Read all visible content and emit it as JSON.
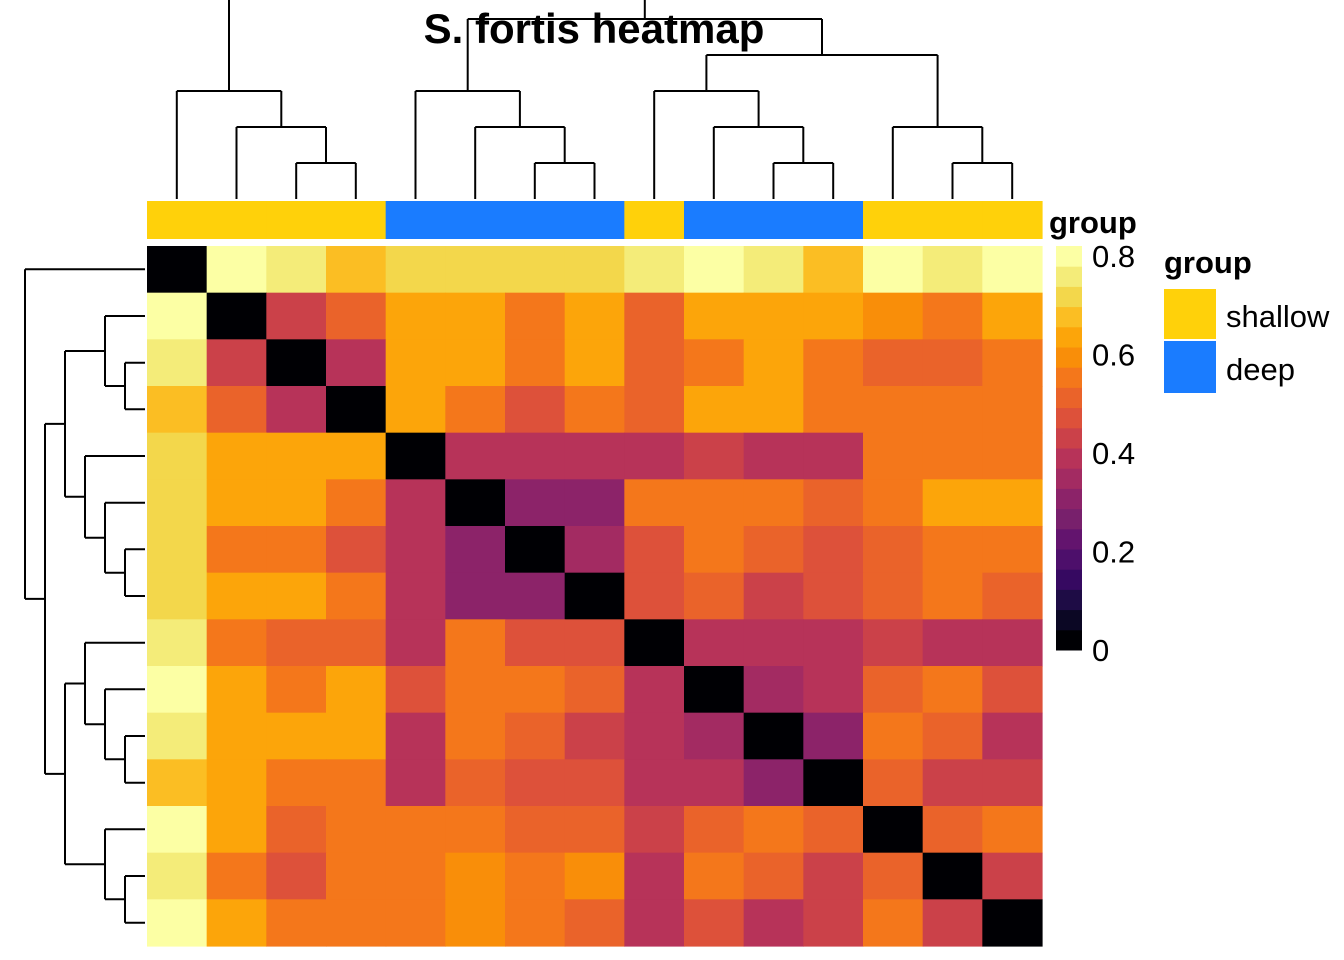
{
  "chart_data": {
    "type": "heatmap",
    "title": "S. fortis heatmap",
    "matrix": [
      [
        0.0,
        0.8,
        0.74,
        0.66,
        0.71,
        0.71,
        0.71,
        0.71,
        0.74,
        0.8,
        0.74,
        0.66,
        0.8,
        0.74,
        0.8
      ],
      [
        0.8,
        0.0,
        0.45,
        0.52,
        0.62,
        0.65,
        0.57,
        0.65,
        0.53,
        0.65,
        0.65,
        0.65,
        0.6,
        0.56,
        0.65
      ],
      [
        0.74,
        0.45,
        0.0,
        0.4,
        0.62,
        0.62,
        0.57,
        0.62,
        0.52,
        0.57,
        0.62,
        0.57,
        0.5,
        0.5,
        0.57
      ],
      [
        0.66,
        0.52,
        0.4,
        0.0,
        0.62,
        0.54,
        0.46,
        0.54,
        0.5,
        0.62,
        0.62,
        0.54,
        0.54,
        0.54,
        0.57
      ],
      [
        0.71,
        0.62,
        0.62,
        0.62,
        0.0,
        0.4,
        0.4,
        0.37,
        0.4,
        0.45,
        0.38,
        0.38,
        0.55,
        0.55,
        0.55
      ],
      [
        0.71,
        0.65,
        0.62,
        0.54,
        0.4,
        0.0,
        0.32,
        0.32,
        0.55,
        0.55,
        0.55,
        0.5,
        0.55,
        0.62,
        0.62
      ],
      [
        0.71,
        0.57,
        0.57,
        0.46,
        0.4,
        0.32,
        0.0,
        0.36,
        0.46,
        0.55,
        0.5,
        0.46,
        0.5,
        0.55,
        0.57
      ],
      [
        0.71,
        0.65,
        0.62,
        0.54,
        0.37,
        0.32,
        0.32,
        0.0,
        0.46,
        0.5,
        0.42,
        0.46,
        0.5,
        0.57,
        0.5
      ],
      [
        0.74,
        0.55,
        0.5,
        0.5,
        0.4,
        0.55,
        0.46,
        0.46,
        0.0,
        0.4,
        0.4,
        0.4,
        0.42,
        0.4,
        0.4
      ],
      [
        0.8,
        0.65,
        0.57,
        0.62,
        0.46,
        0.55,
        0.55,
        0.5,
        0.4,
        0.0,
        0.34,
        0.38,
        0.52,
        0.55,
        0.46
      ],
      [
        0.74,
        0.65,
        0.62,
        0.62,
        0.38,
        0.55,
        0.5,
        0.42,
        0.4,
        0.34,
        0.0,
        0.29,
        0.55,
        0.5,
        0.4
      ],
      [
        0.66,
        0.65,
        0.57,
        0.54,
        0.38,
        0.5,
        0.46,
        0.46,
        0.4,
        0.4,
        0.29,
        0.0,
        0.52,
        0.44,
        0.44
      ],
      [
        0.8,
        0.62,
        0.5,
        0.55,
        0.55,
        0.55,
        0.5,
        0.5,
        0.42,
        0.5,
        0.55,
        0.5,
        0.0,
        0.52,
        0.55
      ],
      [
        0.74,
        0.57,
        0.48,
        0.55,
        0.55,
        0.6,
        0.55,
        0.6,
        0.4,
        0.55,
        0.5,
        0.44,
        0.52,
        0.0,
        0.44
      ],
      [
        0.8,
        0.65,
        0.57,
        0.57,
        0.55,
        0.6,
        0.57,
        0.52,
        0.4,
        0.46,
        0.4,
        0.44,
        0.55,
        0.44,
        0.0
      ]
    ],
    "column_groups": [
      "shallow",
      "shallow",
      "shallow",
      "shallow",
      "deep",
      "deep",
      "deep",
      "deep",
      "shallow",
      "deep",
      "deep",
      "deep",
      "shallow",
      "shallow",
      "shallow"
    ],
    "annotation_label": "group",
    "colorbar": {
      "min": 0,
      "max": 0.82,
      "ticks": [
        {
          "value": 0,
          "label": "0"
        },
        {
          "value": 0.2,
          "label": "0.2"
        },
        {
          "value": 0.4,
          "label": "0.4"
        },
        {
          "value": 0.6,
          "label": "0.6"
        },
        {
          "value": 0.8,
          "label": "0.8"
        }
      ],
      "palette": [
        "#000004",
        "#0b0724",
        "#1e0c45",
        "#360961",
        "#4d0f6b",
        "#63146e",
        "#78206c",
        "#8c2369",
        "#a32b62",
        "#b73359",
        "#cb4149",
        "#dd513a",
        "#ea632a",
        "#f4771b",
        "#f98e09",
        "#fca50a",
        "#fbbe23",
        "#f3d74b",
        "#f4ec79",
        "#fcffa4"
      ]
    },
    "legend": {
      "title": "group",
      "entries": [
        {
          "label": "shallow",
          "color": "#ffd10a"
        },
        {
          "label": "deep",
          "color": "#1a7cff"
        }
      ]
    }
  }
}
